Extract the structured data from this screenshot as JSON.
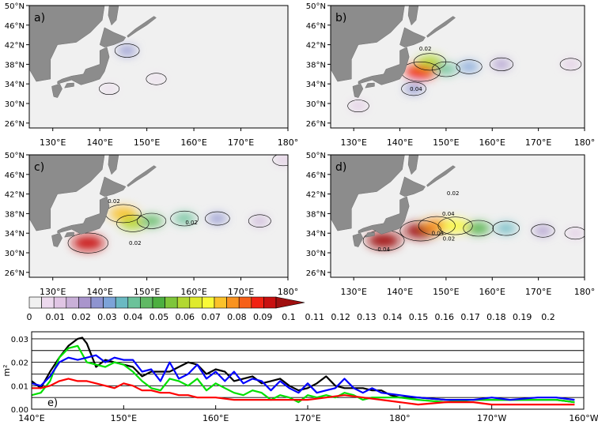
{
  "chart_data": [
    {
      "type": "heatmap",
      "panel_label": "a)",
      "lon_range": [
        125,
        180
      ],
      "lat_range": [
        25,
        50
      ],
      "x_tick_labels": [
        "130°E",
        "140°E",
        "150°E",
        "160°E",
        "170°E",
        "180°"
      ],
      "y_tick_labels": [
        "26°N",
        "30°N",
        "34°N",
        "38°N",
        "42°N",
        "46°N",
        "50°N"
      ],
      "contour_labels": [],
      "blobs": [
        {
          "lon": 145.8,
          "lat": 40.8,
          "value": 0.05
        },
        {
          "lon": 152,
          "lat": 35,
          "value": 0.01
        },
        {
          "lon": 142,
          "lat": 33,
          "value": 0.01
        }
      ]
    },
    {
      "type": "heatmap",
      "panel_label": "b)",
      "lon_range": [
        125,
        180
      ],
      "lat_range": [
        25,
        50
      ],
      "x_tick_labels": [
        "130°E",
        "140°E",
        "150°E",
        "160°E",
        "170°E",
        "180°"
      ],
      "y_tick_labels": [
        "26°N",
        "30°N",
        "34°N",
        "38°N",
        "42°N",
        "46°N",
        "50°N"
      ],
      "contour_labels": [
        {
          "lon": 145.5,
          "lat": 40.8,
          "text": "0.02"
        },
        {
          "lon": 143.5,
          "lat": 32.6,
          "text": "0.04"
        }
      ],
      "blobs": [
        {
          "lon": 144.5,
          "lat": 36.5,
          "value": 0.18
        },
        {
          "lon": 146.5,
          "lat": 38.5,
          "value": 0.12
        },
        {
          "lon": 150,
          "lat": 37,
          "value": 0.08
        },
        {
          "lon": 155,
          "lat": 37.5,
          "value": 0.06
        },
        {
          "lon": 162,
          "lat": 38,
          "value": 0.04
        },
        {
          "lon": 177,
          "lat": 38,
          "value": 0.02
        },
        {
          "lon": 131,
          "lat": 29.5,
          "value": 0.02
        },
        {
          "lon": 143,
          "lat": 33,
          "value": 0.05
        }
      ]
    },
    {
      "type": "heatmap",
      "panel_label": "c)",
      "lon_range": [
        125,
        180
      ],
      "lat_range": [
        25,
        50
      ],
      "x_tick_labels": [
        "130°E",
        "140°E",
        "150°E",
        "160°E",
        "170°E",
        "180°"
      ],
      "y_tick_labels": [
        "26°N",
        "30°N",
        "34°N",
        "38°N",
        "42°N",
        "46°N",
        "50°N"
      ],
      "contour_labels": [
        {
          "lon": 143,
          "lat": 40.2,
          "text": "0.02"
        },
        {
          "lon": 159.5,
          "lat": 35.8,
          "text": "0.02"
        },
        {
          "lon": 147.5,
          "lat": 31.6,
          "text": "0.02"
        }
      ],
      "blobs": [
        {
          "lon": 137.5,
          "lat": 32,
          "value": 0.19
        },
        {
          "lon": 145,
          "lat": 38,
          "value": 0.15
        },
        {
          "lon": 147,
          "lat": 36,
          "value": 0.12
        },
        {
          "lon": 151,
          "lat": 36.5,
          "value": 0.09
        },
        {
          "lon": 158,
          "lat": 37,
          "value": 0.08
        },
        {
          "lon": 165,
          "lat": 37,
          "value": 0.05
        },
        {
          "lon": 174,
          "lat": 36.5,
          "value": 0.03
        },
        {
          "lon": 179,
          "lat": 49,
          "value": 0.02
        }
      ]
    },
    {
      "type": "heatmap",
      "panel_label": "d)",
      "lon_range": [
        125,
        180
      ],
      "lat_range": [
        25,
        50
      ],
      "x_tick_labels": [
        "130°E",
        "140°E",
        "150°E",
        "160°E",
        "170°E",
        "180°"
      ],
      "y_tick_labels": [
        "26°N",
        "30°N",
        "34°N",
        "38°N",
        "42°N",
        "46°N",
        "50°N"
      ],
      "contour_labels": [
        {
          "lon": 151.5,
          "lat": 41.8,
          "text": "0.02"
        },
        {
          "lon": 150.5,
          "lat": 37.6,
          "text": "0.04"
        },
        {
          "lon": 148.2,
          "lat": 33.6,
          "text": "0.04"
        },
        {
          "lon": 136.5,
          "lat": 30.3,
          "text": "0.04"
        },
        {
          "lon": 150.6,
          "lat": 32.5,
          "text": "0.02"
        }
      ],
      "blobs": [
        {
          "lon": 136.5,
          "lat": 32.5,
          "value": 0.2
        },
        {
          "lon": 144.5,
          "lat": 34.5,
          "value": 0.2
        },
        {
          "lon": 148,
          "lat": 35.5,
          "value": 0.16
        },
        {
          "lon": 152,
          "lat": 35.5,
          "value": 0.14
        },
        {
          "lon": 157,
          "lat": 35,
          "value": 0.1
        },
        {
          "lon": 163,
          "lat": 35,
          "value": 0.07
        },
        {
          "lon": 171,
          "lat": 34.5,
          "value": 0.04
        },
        {
          "lon": 178,
          "lat": 34,
          "value": 0.02
        }
      ]
    },
    {
      "type": "colorbar",
      "tick_labels": [
        "0",
        "0.01",
        "0.02",
        "0.03",
        "0.04",
        "0.05",
        "0.06",
        "0.07",
        "0.08",
        "0.09",
        "0.1",
        "0.11",
        "0.12",
        "0.13",
        "0.14",
        "0.15",
        "0.16",
        "0.17",
        "0.18",
        "0.19",
        "0.2"
      ],
      "colors": [
        "#f0f0f0",
        "#ecd9ee",
        "#e0c5e4",
        "#c9b0d8",
        "#a995cc",
        "#8e94d0",
        "#7ca3d8",
        "#6ab9c2",
        "#6cc29a",
        "#60b964",
        "#4caf40",
        "#7ec63a",
        "#b2d832",
        "#dfea2c",
        "#fafa38",
        "#fbc22a",
        "#f99320",
        "#f66018",
        "#f12212",
        "#c81010",
        "#a01010"
      ]
    },
    {
      "type": "line",
      "panel_label": "e)",
      "ylabel": "m²",
      "xlim": [
        140,
        200
      ],
      "ylim": [
        0,
        0.033
      ],
      "x_tick_labels": [
        "140°E",
        "150°E",
        "160°E",
        "170°E",
        "180°",
        "170°W",
        "160°W"
      ],
      "y_tick_labels": [
        "0.00",
        "0.01",
        "0.02",
        "0.03"
      ],
      "series": [
        {
          "color": "#000000",
          "x": [
            140,
            141,
            142,
            143,
            144,
            145,
            145.5,
            146,
            147,
            148,
            149,
            150,
            151,
            152,
            153,
            154,
            155,
            156,
            157,
            158,
            159,
            160,
            161,
            162,
            163,
            164,
            165,
            166,
            167,
            168,
            169,
            170,
            171,
            172,
            173,
            174,
            175,
            176,
            177,
            178,
            179,
            180,
            182,
            185,
            188,
            190,
            192,
            195,
            197,
            199
          ],
          "y": [
            0.012,
            0.009,
            0.016,
            0.022,
            0.027,
            0.03,
            0.0305,
            0.028,
            0.018,
            0.021,
            0.02,
            0.019,
            0.018,
            0.014,
            0.016,
            0.016,
            0.016,
            0.018,
            0.02,
            0.019,
            0.015,
            0.017,
            0.016,
            0.012,
            0.013,
            0.014,
            0.011,
            0.012,
            0.013,
            0.01,
            0.008,
            0.009,
            0.011,
            0.014,
            0.01,
            0.009,
            0.009,
            0.009,
            0.008,
            0.008,
            0.006,
            0.005,
            0.005,
            0.004,
            0.004,
            0.004,
            0.004,
            0.004,
            0.004,
            0.003
          ]
        },
        {
          "color": "#00e000",
          "x": [
            140,
            141,
            142,
            143,
            144,
            145,
            146,
            147,
            148,
            149,
            150,
            151,
            152,
            153,
            154,
            155,
            156,
            157,
            158,
            159,
            160,
            161,
            162,
            163,
            164,
            165,
            166,
            167,
            168,
            169,
            170,
            171,
            172,
            173,
            174,
            175,
            176,
            177,
            178,
            180,
            182,
            185,
            188,
            190,
            192,
            195,
            197,
            199
          ],
          "y": [
            0.006,
            0.007,
            0.012,
            0.022,
            0.026,
            0.027,
            0.02,
            0.019,
            0.018,
            0.02,
            0.019,
            0.016,
            0.012,
            0.009,
            0.008,
            0.013,
            0.012,
            0.01,
            0.013,
            0.008,
            0.011,
            0.009,
            0.007,
            0.006,
            0.008,
            0.007,
            0.004,
            0.006,
            0.005,
            0.003,
            0.006,
            0.005,
            0.006,
            0.005,
            0.007,
            0.006,
            0.004,
            0.005,
            0.005,
            0.005,
            0.004,
            0.003,
            0.004,
            0.004,
            0.004,
            0.004,
            0.004,
            0.003
          ]
        },
        {
          "color": "#0000ff",
          "x": [
            140,
            141,
            142,
            143,
            144,
            145,
            146,
            147,
            148,
            149,
            150,
            151,
            152,
            153,
            154,
            155,
            156,
            157,
            158,
            159,
            160,
            161,
            162,
            163,
            164,
            165,
            166,
            167,
            168,
            169,
            170,
            171,
            172,
            173,
            174,
            175,
            176,
            177,
            178,
            180,
            182,
            185,
            188,
            190,
            192,
            195,
            197,
            199
          ],
          "y": [
            0.011,
            0.01,
            0.014,
            0.02,
            0.022,
            0.021,
            0.022,
            0.023,
            0.02,
            0.022,
            0.021,
            0.021,
            0.016,
            0.017,
            0.012,
            0.02,
            0.013,
            0.015,
            0.019,
            0.013,
            0.016,
            0.012,
            0.016,
            0.011,
            0.013,
            0.012,
            0.008,
            0.012,
            0.009,
            0.007,
            0.011,
            0.007,
            0.008,
            0.009,
            0.013,
            0.009,
            0.007,
            0.009,
            0.007,
            0.006,
            0.005,
            0.004,
            0.004,
            0.005,
            0.004,
            0.005,
            0.005,
            0.004
          ]
        },
        {
          "color": "#ff0000",
          "x": [
            140,
            141,
            142,
            143,
            144,
            145,
            146,
            147,
            148,
            149,
            150,
            151,
            152,
            153,
            154,
            155,
            156,
            157,
            158,
            159,
            160,
            162,
            164,
            166,
            168,
            170,
            172,
            174,
            176,
            178,
            180,
            182,
            185,
            188,
            190,
            192,
            195,
            197,
            199
          ],
          "y": [
            0.009,
            0.009,
            0.01,
            0.012,
            0.013,
            0.012,
            0.012,
            0.011,
            0.01,
            0.009,
            0.011,
            0.01,
            0.008,
            0.008,
            0.007,
            0.007,
            0.006,
            0.006,
            0.005,
            0.005,
            0.005,
            0.004,
            0.004,
            0.004,
            0.004,
            0.004,
            0.005,
            0.006,
            0.005,
            0.004,
            0.003,
            0.002,
            0.003,
            0.003,
            0.002,
            0.002,
            0.002,
            0.002,
            0.002
          ]
        }
      ]
    }
  ]
}
